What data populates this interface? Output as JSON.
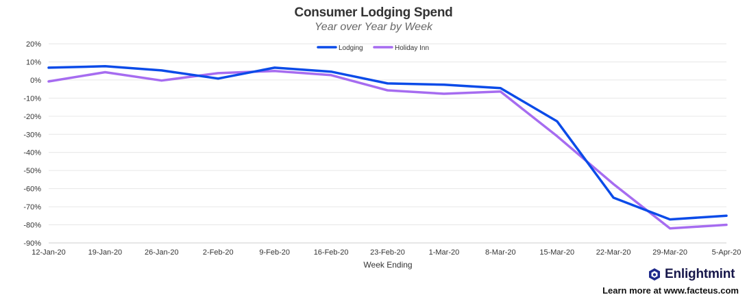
{
  "chart_data": {
    "type": "line",
    "title": "Consumer Lodging Spend",
    "subtitle": "Year over Year by Week",
    "xlabel": "Week Ending",
    "ylabel": "",
    "categories": [
      "12-Jan-20",
      "19-Jan-20",
      "26-Jan-20",
      "2-Feb-20",
      "9-Feb-20",
      "16-Feb-20",
      "23-Feb-20",
      "1-Mar-20",
      "8-Mar-20",
      "15-Mar-20",
      "22-Mar-20",
      "29-Mar-20",
      "5-Apr-20"
    ],
    "ylim": [
      -90,
      20
    ],
    "yticks": [
      20,
      10,
      0,
      -10,
      -20,
      -30,
      -40,
      -50,
      -60,
      -70,
      -80,
      -90
    ],
    "ytick_labels": [
      "20%",
      "10%",
      "0%",
      "-10%",
      "-20%",
      "-30%",
      "-40%",
      "-50%",
      "-60%",
      "-70%",
      "-80%",
      "-90%"
    ],
    "grid": true,
    "legend": "top-center",
    "series": [
      {
        "name": "Lodging",
        "color": "#0b4be8",
        "values": [
          6.8,
          7.6,
          5.3,
          0.8,
          6.8,
          4.6,
          -1.9,
          -2.6,
          -4.5,
          -22.8,
          -65.0,
          -77.0,
          -75.0
        ]
      },
      {
        "name": "Holiday Inn",
        "color": "#a66cf0",
        "values": [
          -0.8,
          4.3,
          -0.3,
          3.8,
          5.0,
          2.7,
          -5.7,
          -7.6,
          -6.4,
          -31.0,
          -57.5,
          -82.0,
          -80.0
        ]
      }
    ]
  },
  "branding": {
    "name": "Enlightmint",
    "logo_icon": "enlightmint-logo-icon",
    "logo_color": "#1f2a8c",
    "learn_more": "Learn more at www.facteus.com"
  }
}
